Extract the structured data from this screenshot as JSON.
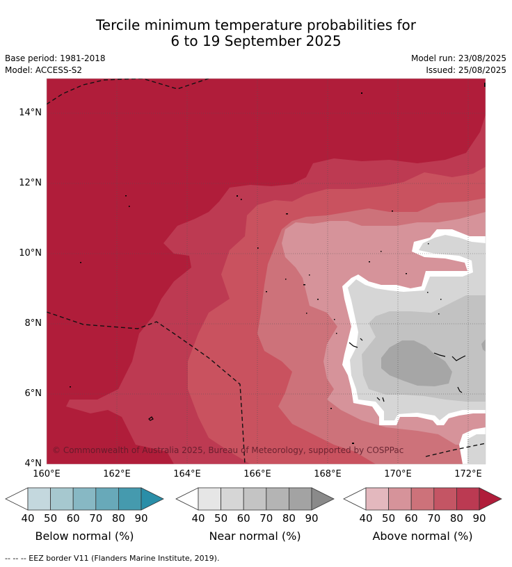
{
  "header": {
    "title_line1": "Tercile minimum temperature probabilities for",
    "title_line2": "6 to 19 September 2025",
    "base_period": "Base period: 1981-2018",
    "model": "Model: ACCESS-S2",
    "model_run": "Model run: 23/08/2025",
    "issued": "Issued: 25/08/2025"
  },
  "map": {
    "copyright": "© Commonwealth of Australia 2025, Bureau of Meteorology, supported by COSPPac",
    "lat_labels": [
      "14°N",
      "12°N",
      "10°N",
      "8°N",
      "6°N",
      "4°N"
    ],
    "lon_labels": [
      "160°E",
      "162°E",
      "164°E",
      "166°E",
      "168°E",
      "170°E",
      "172°E"
    ],
    "extent": {
      "lon_min": 160,
      "lon_max": 172.5,
      "lat_min": 4,
      "lat_max": 15
    },
    "colors": {
      "above_90": "#b01d3a",
      "above_80": "#bd3a52",
      "above_70": "#c9525f",
      "above_60": "#cd727a",
      "above_50": "#d6939a",
      "near_40": "#e6e6e6",
      "near_50": "#d6d6d6",
      "near_60": "#c2c2c2",
      "near_70": "#a6a6a6"
    }
  },
  "legends": [
    {
      "title": "Below normal (%)",
      "ticks": [
        "40",
        "50",
        "60",
        "70",
        "80",
        "90"
      ],
      "colors": [
        "#c4d8de",
        "#a6c8cf",
        "#87b8c4",
        "#68a9b9",
        "#459aae",
        "#2a8ea8"
      ]
    },
    {
      "title": "Near normal (%)",
      "ticks": [
        "40",
        "50",
        "60",
        "70",
        "80",
        "90"
      ],
      "colors": [
        "#e6e6e6",
        "#d6d6d6",
        "#c4c4c4",
        "#b4b4b4",
        "#a3a3a3",
        "#8a8a8a"
      ]
    },
    {
      "title": "Above normal (%)",
      "ticks": [
        "40",
        "50",
        "60",
        "70",
        "80",
        "90"
      ],
      "colors": [
        "#e3b8be",
        "#d6939a",
        "#cd727a",
        "#c45564",
        "#bb3a52",
        "#b01d3a"
      ]
    }
  ],
  "footer": {
    "eez_note": "--  --  -- EEZ border V11 (Flanders Marine Institute, 2019)."
  }
}
